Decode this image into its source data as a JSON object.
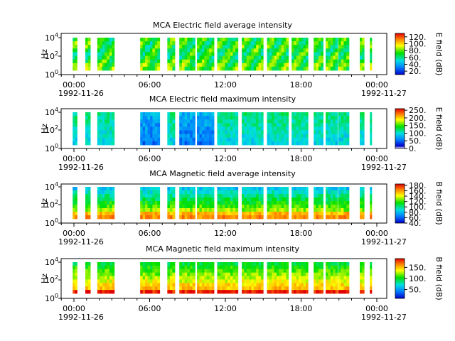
{
  "chart_data": [
    {
      "type": "heatmap",
      "title": "MCA  Electric field average intensity",
      "ylabel": "Hz",
      "y_ticks": [
        "10",
        "10",
        "10"
      ],
      "y_tick_exp": [
        "0",
        "2",
        "4"
      ],
      "x_ticks": [
        "00:00",
        "06:00",
        "12:00",
        "18:00",
        "00:00"
      ],
      "x_dates": [
        "1992-11-26",
        "1992-11-27"
      ],
      "colorbar_label": "E field (dB)",
      "colorbar_ticks": [
        "20.",
        "40.",
        "60.",
        "80.",
        "100.",
        "120."
      ],
      "colorbar_range": [
        10,
        130
      ],
      "palette": "e"
    },
    {
      "type": "heatmap",
      "title": "MCA  Electric field maximum intensity",
      "ylabel": "Hz",
      "y_ticks": [
        "10",
        "10",
        "10"
      ],
      "y_tick_exp": [
        "0",
        "2",
        "4"
      ],
      "x_ticks": [
        "00:00",
        "06:00",
        "12:00",
        "18:00",
        "00:00"
      ],
      "x_dates": [
        "1992-11-26",
        "1992-11-27"
      ],
      "colorbar_label": "E field (dB)",
      "colorbar_ticks": [
        "0.",
        "50.",
        "100.",
        "150.",
        "200.",
        "250."
      ],
      "colorbar_range": [
        0,
        260
      ],
      "palette": "emax"
    },
    {
      "type": "heatmap",
      "title": "MCA  Magnetic field average intensity",
      "ylabel": "Hz",
      "y_ticks": [
        "10",
        "10",
        "10"
      ],
      "y_tick_exp": [
        "0",
        "2",
        "4"
      ],
      "x_ticks": [
        "00:00",
        "06:00",
        "12:00",
        "18:00",
        "00:00"
      ],
      "x_dates": [
        "1992-11-26",
        "1992-11-27"
      ],
      "colorbar_label": "B field (dB)",
      "colorbar_ticks": [
        "40.",
        "60.",
        "80.",
        "100.",
        "120.",
        "140.",
        "160.",
        "180."
      ],
      "colorbar_range": [
        40,
        185
      ],
      "palette": "b"
    },
    {
      "type": "heatmap",
      "title": "MCA  Magnetic field maximum intensity",
      "ylabel": "Hz",
      "y_ticks": [
        "10",
        "10",
        "10"
      ],
      "y_tick_exp": [
        "0",
        "2",
        "4"
      ],
      "x_ticks": [
        "00:00",
        "06:00",
        "12:00",
        "18:00",
        "00:00"
      ],
      "x_dates": [
        "1992-11-26",
        "1992-11-27"
      ],
      "colorbar_label": "B field (dB)",
      "colorbar_ticks": [
        "50.",
        "100.",
        "150."
      ],
      "colorbar_range": [
        10,
        190
      ],
      "palette": "b"
    }
  ],
  "data_segments_hours": [
    [
      -0.1,
      0.25
    ],
    [
      0.9,
      1.3
    ],
    [
      1.85,
      3.2
    ],
    [
      5.25,
      6.8
    ],
    [
      7.4,
      8.0
    ],
    [
      8.35,
      9.6
    ],
    [
      9.75,
      11.1
    ],
    [
      11.35,
      13.0
    ],
    [
      13.3,
      15.0
    ],
    [
      15.3,
      17.0
    ],
    [
      17.25,
      18.55
    ],
    [
      19.0,
      19.75
    ],
    [
      19.95,
      20.9
    ],
    [
      20.95,
      21.8
    ],
    [
      22.65,
      23.0
    ],
    [
      23.45,
      23.6
    ]
  ]
}
